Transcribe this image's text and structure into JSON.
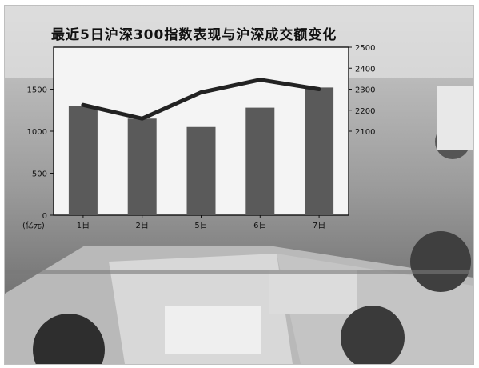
{
  "chart_data": {
    "type": "bar+line",
    "title": "最近5日沪深300指数表现与沪深成交额变化",
    "categories": [
      "1日",
      "2日",
      "5日",
      "6日",
      "7日"
    ],
    "x_prefix_label": "(亿元)",
    "bar_series": {
      "axis": "left",
      "values": [
        1300,
        1150,
        1050,
        1280,
        1520
      ],
      "ylim": [
        0,
        2000
      ],
      "ticks": [
        0,
        500,
        1000,
        1500
      ]
    },
    "line_series": {
      "axis": "right",
      "values": [
        2225,
        2160,
        2285,
        2345,
        2300
      ],
      "ylim": [
        1700,
        2500
      ],
      "ticks": [
        2100,
        2200,
        2300,
        2400,
        2500
      ]
    },
    "colors": {
      "bars": "#5a5a5a",
      "line": "#222222",
      "plot_bg": "#f4f4f4"
    },
    "grid": false,
    "legend": "none"
  }
}
